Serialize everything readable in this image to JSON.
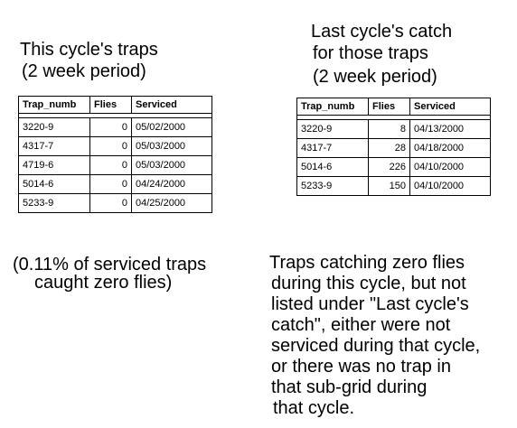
{
  "left": {
    "heading_line1": "This cycle's traps",
    "heading_line2": "(2 week period)",
    "columns": [
      "Trap_numb",
      "Flies",
      "Serviced"
    ],
    "rows": [
      [
        "3220-9",
        "0",
        "05/02/2000"
      ],
      [
        "4317-7",
        "0",
        "05/03/2000"
      ],
      [
        "4719-6",
        "0",
        "05/03/2000"
      ],
      [
        "5014-6",
        "0",
        "04/24/2000"
      ],
      [
        "5233-9",
        "0",
        "04/25/2000"
      ]
    ],
    "note_line1": "(0.11% of serviced traps",
    "note_line2": "caught zero flies)"
  },
  "right": {
    "heading_line1": "Last cycle's catch",
    "heading_line2": "for those traps",
    "heading_line3": "(2 week period)",
    "columns": [
      "Trap_numb",
      "Flies",
      "Serviced"
    ],
    "rows": [
      [
        "3220-9",
        "8",
        "04/13/2000"
      ],
      [
        "4317-7",
        "28",
        "04/18/2000"
      ],
      [
        "5014-6",
        "226",
        "04/10/2000"
      ],
      [
        "5233-9",
        "150",
        "04/10/2000"
      ]
    ],
    "note_lines": [
      "Traps catching zero flies",
      "during this cycle, but not",
      "listed under \"Last cycle's",
      "catch\", either were not",
      "serviced during that cycle,",
      "or there was no trap in",
      "that sub-grid during",
      "that cycle."
    ]
  }
}
